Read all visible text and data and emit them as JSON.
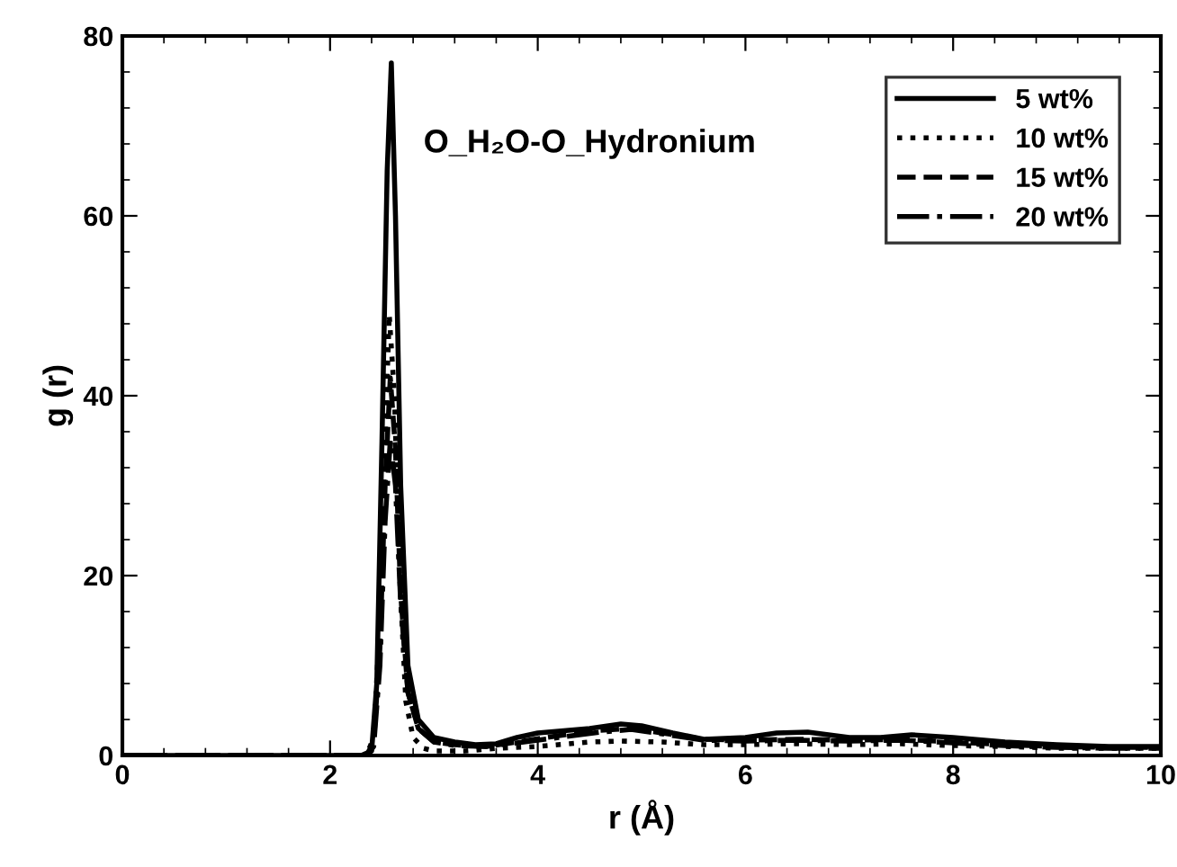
{
  "chart_data": {
    "type": "line",
    "xlabel": "r (Å)",
    "ylabel": "g (r)",
    "annotations": [
      "O_H₂O-O_Hydronium"
    ],
    "xlim": [
      0,
      10
    ],
    "ylim": [
      0,
      80
    ],
    "xticks": [
      0,
      2,
      4,
      6,
      8,
      10
    ],
    "yticks": [
      0,
      20,
      40,
      60,
      80
    ],
    "legend": "top right",
    "grid": false,
    "series": [
      {
        "name": "5 wt%",
        "color": "#000000",
        "line_style": "solid",
        "x": [
          0,
          2.3,
          2.4,
          2.45,
          2.5,
          2.55,
          2.59,
          2.63,
          2.68,
          2.75,
          2.85,
          3.0,
          3.2,
          3.4,
          3.6,
          3.8,
          4.0,
          4.2,
          4.5,
          4.8,
          5.0,
          5.3,
          5.6,
          6.0,
          6.3,
          6.6,
          7.0,
          7.3,
          7.6,
          8.0,
          8.5,
          9.0,
          9.5,
          10
        ],
        "values": [
          0,
          0,
          0.5,
          8,
          35,
          65,
          77,
          60,
          30,
          10,
          4,
          2,
          1.5,
          1.2,
          1.3,
          2,
          2.5,
          2.7,
          3,
          3.5,
          3.3,
          2.5,
          1.8,
          2,
          2.5,
          2.6,
          2,
          2,
          2.3,
          2,
          1.5,
          1.2,
          1,
          1
        ]
      },
      {
        "name": "10 wt%",
        "color": "#000000",
        "line_style": "dotted",
        "x": [
          0,
          2.35,
          2.42,
          2.48,
          2.53,
          2.57,
          2.62,
          2.67,
          2.73,
          2.8,
          2.9,
          3.0,
          3.3,
          3.6,
          4.0,
          4.5,
          4.8,
          5.2,
          5.6,
          6.0,
          6.5,
          7.0,
          7.5,
          8.0,
          8.5,
          9.0,
          9.5,
          10
        ],
        "values": [
          0,
          0,
          2,
          15,
          35,
          49,
          40,
          20,
          6,
          2,
          0.8,
          0.5,
          0.5,
          0.8,
          1,
          1.5,
          1.6,
          1.5,
          1.2,
          1.2,
          1.3,
          1.2,
          1.3,
          1.1,
          1,
          0.8,
          0.8,
          0.8
        ]
      },
      {
        "name": "15 wt%",
        "color": "#000000",
        "line_style": "dashed",
        "x": [
          0,
          2.35,
          2.42,
          2.48,
          2.53,
          2.58,
          2.63,
          2.68,
          2.75,
          2.85,
          3.0,
          3.2,
          3.5,
          3.8,
          4.2,
          4.6,
          4.9,
          5.2,
          5.6,
          6.0,
          6.5,
          7.0,
          7.5,
          8.0,
          8.5,
          9.0,
          9.5,
          10
        ],
        "values": [
          0,
          0,
          1.5,
          12,
          30,
          42,
          34,
          18,
          7,
          3,
          1.5,
          1.2,
          1,
          1.5,
          2.2,
          2.8,
          3,
          2.5,
          1.8,
          1.7,
          1.8,
          1.7,
          1.8,
          1.5,
          1.2,
          1,
          0.9,
          0.9
        ]
      },
      {
        "name": "20 wt%",
        "color": "#000000",
        "line_style": "dashdot",
        "x": [
          0,
          2.35,
          2.42,
          2.48,
          2.53,
          2.58,
          2.63,
          2.68,
          2.75,
          2.85,
          3.0,
          3.2,
          3.5,
          3.8,
          4.2,
          4.6,
          4.9,
          5.2,
          5.6,
          6.0,
          6.5,
          7.0,
          7.5,
          8.0,
          8.5,
          9.0,
          9.5,
          10
        ],
        "values": [
          0,
          0,
          1,
          10,
          26,
          35,
          30,
          17,
          7,
          3,
          1.5,
          1.1,
          1,
          1.4,
          2,
          2.6,
          2.9,
          2.4,
          1.7,
          1.6,
          1.7,
          1.6,
          1.7,
          1.4,
          1.1,
          0.9,
          0.8,
          0.8
        ]
      }
    ]
  }
}
